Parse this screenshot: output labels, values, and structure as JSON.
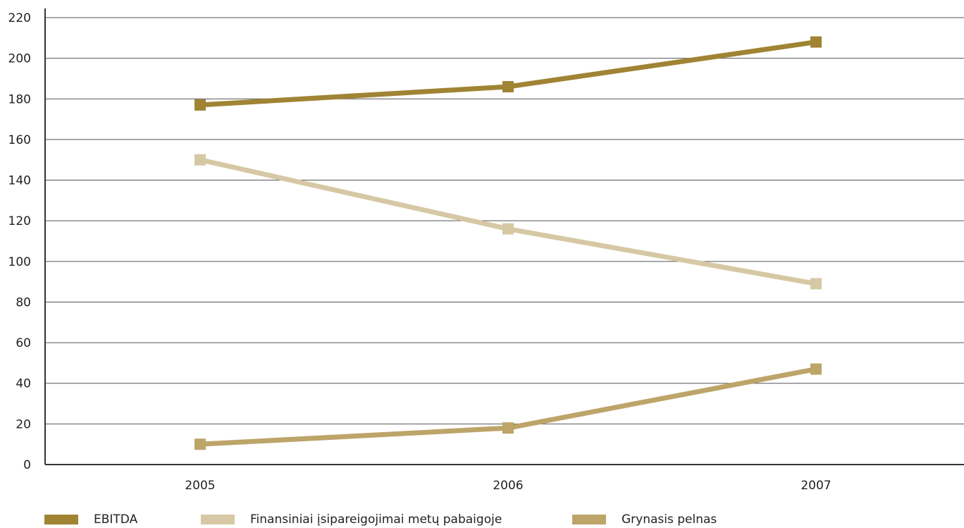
{
  "chart_data": {
    "type": "line",
    "categories": [
      "2005",
      "2006",
      "2007"
    ],
    "ylim": [
      0,
      220
    ],
    "yticks": [
      0,
      20,
      40,
      60,
      80,
      100,
      120,
      140,
      160,
      180,
      200,
      220
    ],
    "ytick_labels": [
      "0",
      "20",
      "40",
      "60",
      "80",
      "100",
      "120",
      "140",
      "160",
      "180",
      "200",
      "220"
    ],
    "grid": true,
    "legend_placement": "bottom",
    "series": [
      {
        "name": "EBITDA",
        "values": [
          177,
          186,
          208
        ],
        "color": "#a08434"
      },
      {
        "name": "Finansiniai įsipareigojimai metų pabaigoje",
        "values": [
          150,
          116,
          89
        ],
        "color": "#d6c8a4"
      },
      {
        "name": "Grynasis pelnas",
        "values": [
          10,
          18,
          47
        ],
        "color": "#bda469"
      }
    ]
  }
}
